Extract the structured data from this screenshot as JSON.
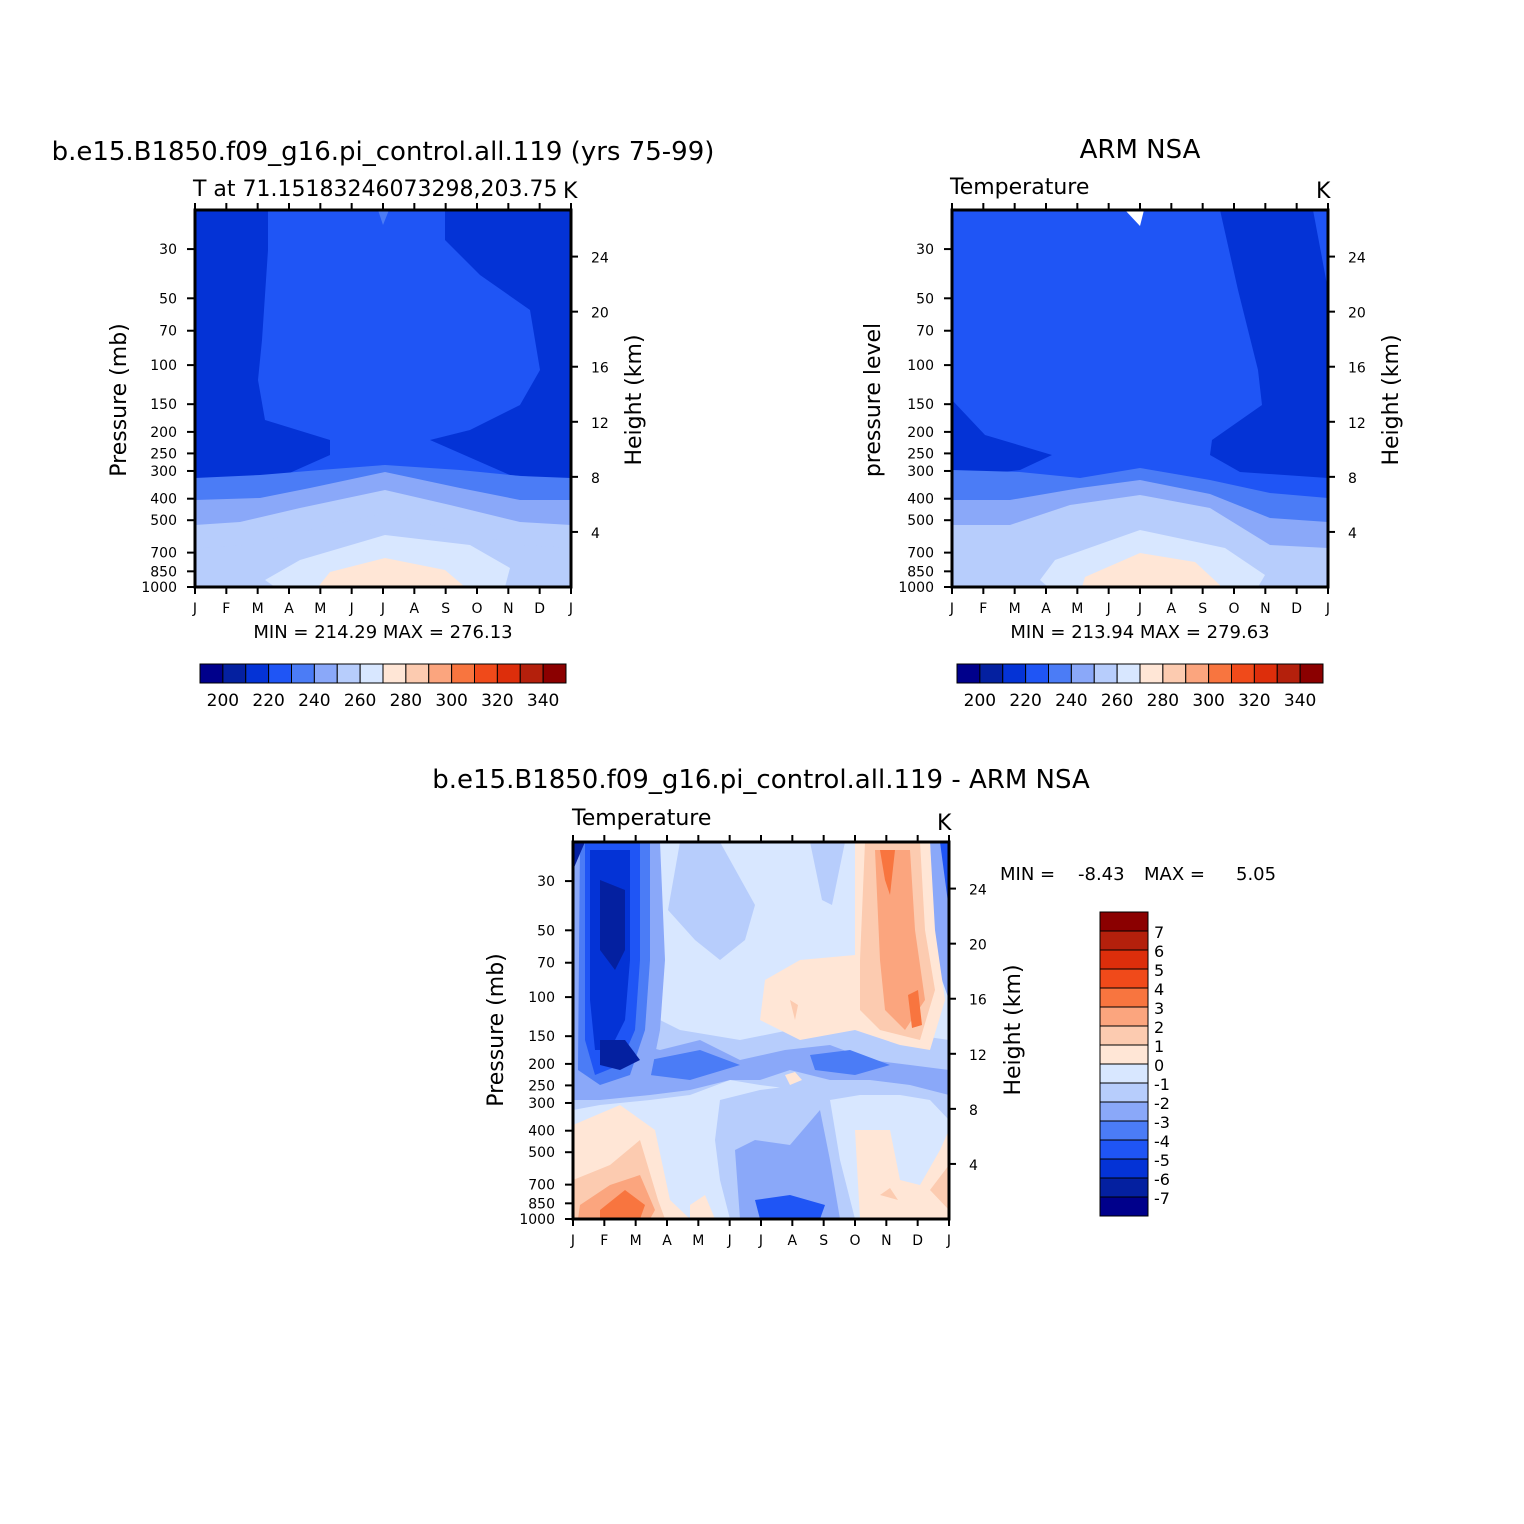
{
  "months": [
    "J",
    "F",
    "M",
    "A",
    "M",
    "J",
    "J",
    "A",
    "S",
    "O",
    "N",
    "D",
    "J"
  ],
  "pressure_ticks": [
    "30",
    "50",
    "70",
    "100",
    "150",
    "200",
    "250",
    "300",
    "400",
    "500",
    "700",
    "850",
    "1000"
  ],
  "height_ticks": [
    "24",
    "20",
    "16",
    "12",
    "8",
    "4"
  ],
  "colormaps": {
    "temperature": [
      "#00008b",
      "#0420a0",
      "#0433d6",
      "#1f55f5",
      "#4b7cf6",
      "#8aa8f9",
      "#b7cdfc",
      "#d8e7ff",
      "#ffe6d6",
      "#fccbb0",
      "#fba57e",
      "#f8753f",
      "#f04a1a",
      "#dd2e0b",
      "#b4200c",
      "#8b0000"
    ],
    "difference": [
      "#00008b",
      "#0420a0",
      "#0433d6",
      "#1f55f5",
      "#4b7cf6",
      "#8aa8f9",
      "#b7cdfc",
      "#d8e7ff",
      "#ffe6d6",
      "#fccbb0",
      "#fba57e",
      "#f8753f",
      "#f04a1a",
      "#dd2e0b",
      "#b4200c",
      "#8b0000"
    ]
  },
  "chart_data": [
    {
      "type": "heatmap",
      "title": "b.e15.B1850.f09_g16.pi_control.all.119 (yrs 75-99)",
      "subtitle": "T at 71.15183246073298,203.75",
      "units": "K",
      "ylabel": "Pressure (mb)",
      "y2label": "Height (km)",
      "stats": "MIN = 214.29 MAX = 276.13",
      "colorbar_labels": [
        "200",
        "220",
        "240",
        "260",
        "280",
        "300",
        "320",
        "340"
      ],
      "colorbar_levels": [
        195,
        200,
        205,
        210,
        215,
        220,
        225,
        230,
        235,
        240,
        245,
        250,
        255,
        260,
        265,
        270,
        275,
        280,
        285,
        290,
        295,
        300,
        305,
        310,
        315,
        320,
        325,
        330,
        335,
        340,
        345
      ],
      "ylim": [
        1000,
        20
      ]
    },
    {
      "type": "heatmap",
      "title": "ARM NSA",
      "subtitle": "Temperature",
      "units": "K",
      "ylabel": "pressure level",
      "y2label": "Height (km)",
      "stats": "MIN = 213.94 MAX = 279.63",
      "colorbar_labels": [
        "200",
        "220",
        "240",
        "260",
        "280",
        "300",
        "320",
        "340"
      ],
      "ylim": [
        1000,
        20
      ]
    },
    {
      "type": "heatmap",
      "title": "b.e15.B1850.f09_g16.pi_control.all.119 - ARM NSA",
      "subtitle": "Temperature",
      "units": "K",
      "ylabel": "Pressure (mb)",
      "y2label": "Height (km)",
      "stats": "MIN = -8.43 MAX = 5.05",
      "stats_min_label": "MIN =",
      "stats_min": "-8.43",
      "stats_max_label": "MAX =",
      "stats_max": "5.05",
      "colorbar_labels": [
        "7",
        "6",
        "5",
        "4",
        "3",
        "2",
        "1",
        "0",
        "-1",
        "-2",
        "-3",
        "-4",
        "-5",
        "-6",
        "-7"
      ],
      "ylim": [
        1000,
        20
      ]
    }
  ]
}
